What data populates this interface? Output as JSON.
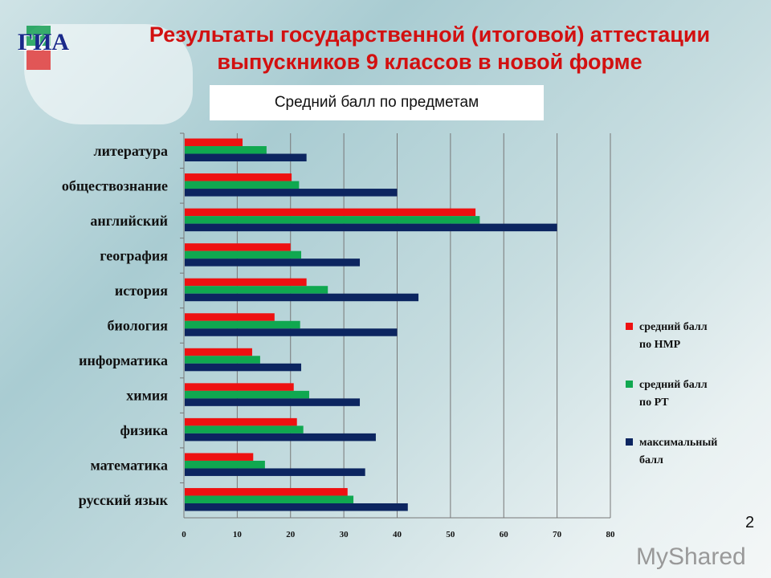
{
  "logo_text": "ГИА",
  "title": "Результаты государственной (итоговой) аттестации выпускников 9 классов в новой форме",
  "page_number": "2",
  "watermark": "MyShared",
  "chart_data": {
    "type": "bar",
    "orientation": "horizontal",
    "title": "Средний балл по предметам",
    "categories": [
      "литература",
      "обществознание",
      "английский",
      "география",
      "история",
      "биология",
      "информатика",
      "химия",
      "физика",
      "математика",
      "русский язык"
    ],
    "series": [
      {
        "name": "средний балл по НМР",
        "color": "#ee1111",
        "values": [
          11,
          20.2,
          54.7,
          20,
          23,
          17,
          12.8,
          20.6,
          21.2,
          13,
          30.7
        ]
      },
      {
        "name": "средний балл по РТ",
        "color": "#10a850",
        "values": [
          15.5,
          21.6,
          55.5,
          22,
          27,
          21.8,
          14.3,
          23.5,
          22.4,
          15.2,
          31.8
        ]
      },
      {
        "name": "максимальный балл",
        "color": "#0c2560",
        "values": [
          23,
          40,
          70,
          33,
          44,
          40,
          22,
          33,
          36,
          34,
          42
        ]
      }
    ],
    "xlim": [
      0,
      80
    ],
    "xticks": [
      0,
      10,
      20,
      30,
      40,
      50,
      60,
      70,
      80
    ],
    "grid": true,
    "legend_position": "right"
  }
}
